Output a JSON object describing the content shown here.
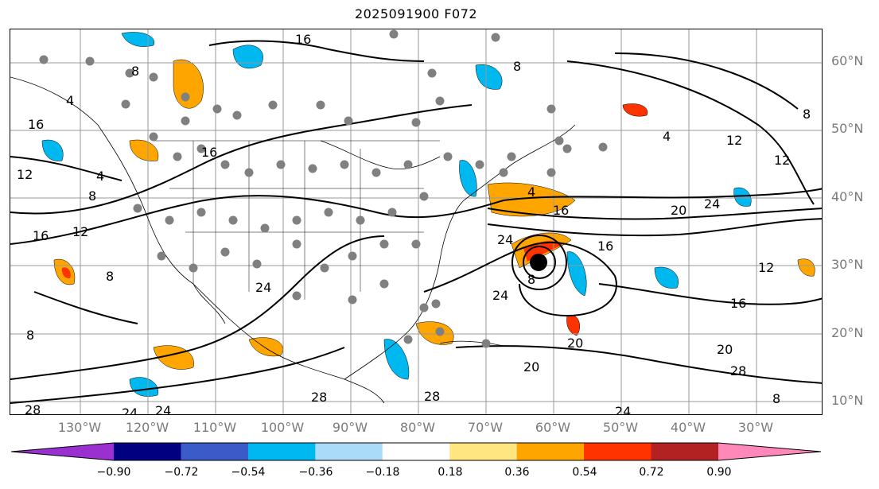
{
  "title": "2025091900 F072",
  "latitude_labels": [
    "60°N",
    "50°N",
    "40°N",
    "30°N",
    "20°N",
    "10°N"
  ],
  "longitude_labels": [
    "130°W",
    "120°W",
    "110°W",
    "100°W",
    "90°W",
    "80°W",
    "70°W",
    "60°W",
    "50°W",
    "40°W",
    "30°W"
  ],
  "contour_labels": [
    "16",
    "8",
    "4",
    "16",
    "12",
    "8",
    "16",
    "12",
    "8",
    "4",
    "8",
    "12",
    "8",
    "24",
    "24",
    "16",
    "24",
    "28",
    "20",
    "24",
    "16",
    "16",
    "12",
    "8",
    "12",
    "20",
    "28",
    "24",
    "28",
    "24",
    "8",
    "28",
    "16",
    "24",
    "20",
    "4",
    "4",
    "20",
    "8"
  ],
  "colorbar": {
    "ticks": [
      "−0.90",
      "−0.72",
      "−0.54",
      "−0.36",
      "−0.18",
      "0.18",
      "0.36",
      "0.54",
      "0.72",
      "0.90"
    ],
    "colors": [
      "#9b30d0",
      "#000080",
      "#3a5bc8",
      "#00b8f0",
      "#aadcfa",
      "#ffffff",
      "#ffe680",
      "#ffa500",
      "#ff3300",
      "#b22222",
      "#ff88bb"
    ]
  },
  "colors": {
    "gridline": "#999999",
    "contour": "#000000",
    "station_marker": "#808080",
    "axis_label": "#7a7a7a"
  }
}
